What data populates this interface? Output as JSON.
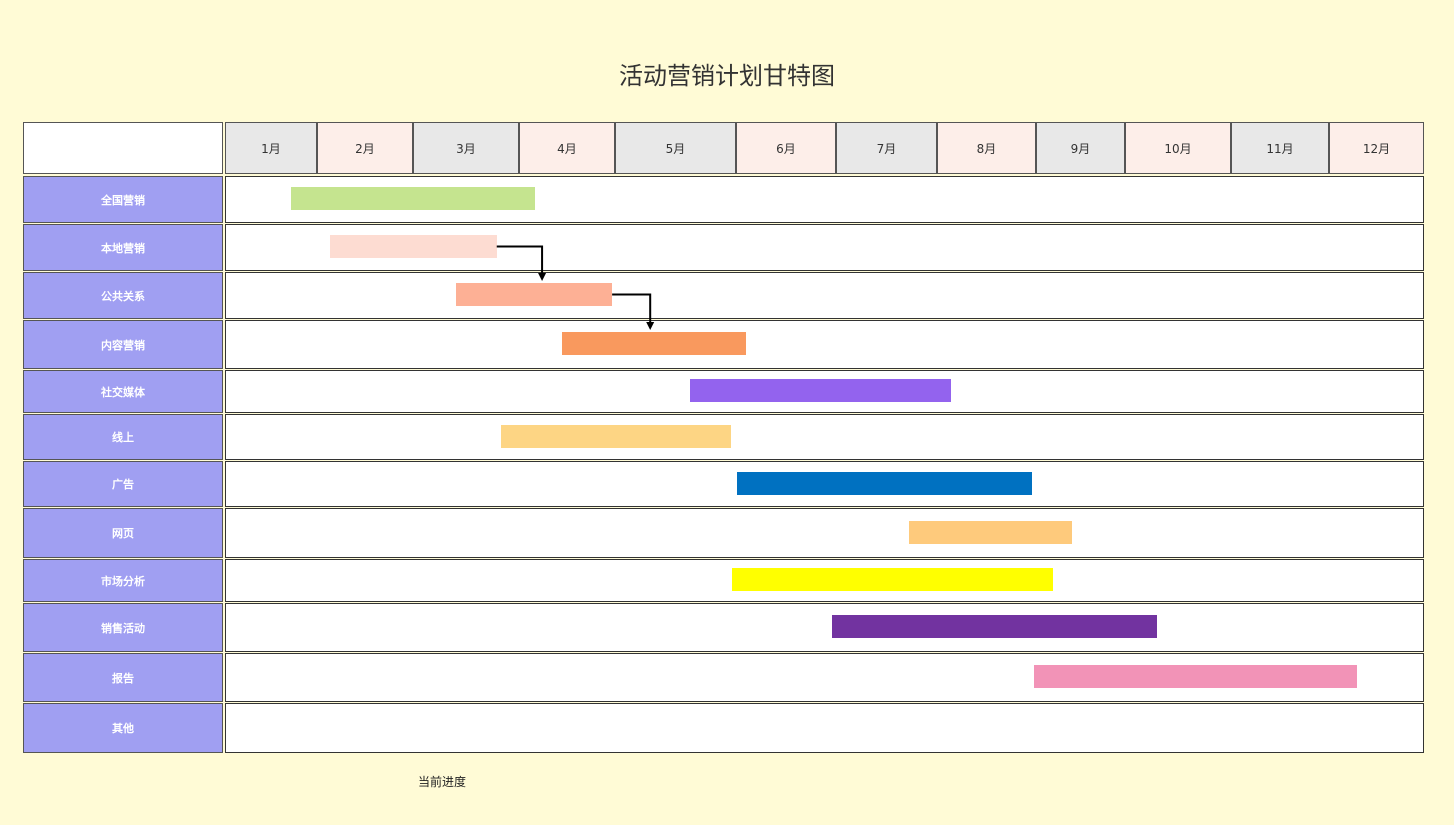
{
  "title": "活动营销计划甘特图",
  "legend_label": "当前进度",
  "months": [
    "1月",
    "2月",
    "3月",
    "4月",
    "5月",
    "6月",
    "7月",
    "8月",
    "9月",
    "10月",
    "11月",
    "12月"
  ],
  "month_colors": [
    "#e8e8e8",
    "#fdeee9",
    "#e8e8e8",
    "#fdeee9",
    "#e8e8e8",
    "#fdeee9",
    "#e8e8e8",
    "#fdeee9",
    "#e8e8e8",
    "#fdeee9",
    "#e8e8e8",
    "#fdeee9"
  ],
  "colors": {
    "background": "#fffbd6",
    "label_fill": "#a09ff2",
    "arrow": "#000000"
  },
  "chart_data": {
    "type": "gantt",
    "tasks": [
      {
        "name": "全国营销",
        "start": 1.72,
        "end": 4.17,
        "color": "#c5e48f"
      },
      {
        "name": "本地营销",
        "start": 2.14,
        "end": 3.79,
        "color": "#fddcd2"
      },
      {
        "name": "公共关系",
        "start": 3.41,
        "end": 4.97,
        "color": "#fdb095"
      },
      {
        "name": "内容营销",
        "start": 4.45,
        "end": 6.1,
        "color": "#f9995e"
      },
      {
        "name": "社交媒体",
        "start": 5.62,
        "end": 8.14,
        "color": "#9363ee"
      },
      {
        "name": "线上",
        "start": 3.83,
        "end": 5.96,
        "color": "#fdd584"
      },
      {
        "name": "广告",
        "start": 6.01,
        "end": 8.96,
        "color": "#0071c1"
      },
      {
        "name": "网页",
        "start": 7.72,
        "end": 9.41,
        "color": "#feca7c"
      },
      {
        "name": "市场分析",
        "start": 5.97,
        "end": 9.19,
        "color": "#ffff00"
      },
      {
        "name": "销售活动",
        "start": 6.96,
        "end": 10.3,
        "color": "#7233a0"
      },
      {
        "name": "报告",
        "start": 8.98,
        "end": 12.3,
        "color": "#f293b7"
      },
      {
        "name": "其他",
        "start": null,
        "end": null,
        "color": null
      }
    ],
    "dependencies": [
      {
        "from": "本地营销",
        "to": "公共关系"
      },
      {
        "from": "公共关系",
        "to": "内容营销"
      }
    ]
  }
}
